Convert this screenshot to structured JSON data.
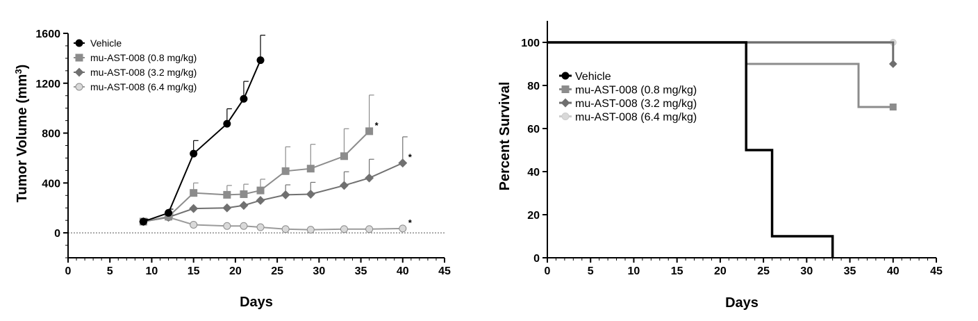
{
  "chart_data": [
    {
      "type": "line",
      "title": "",
      "xlabel": "Days",
      "ylabel": "Tumor Volume (mm",
      "ylabel_sup": "3",
      "ylabel_close": ")",
      "xlim": [
        0,
        45
      ],
      "ylim": [
        -200,
        1600
      ],
      "xticks": [
        0,
        5,
        10,
        15,
        20,
        25,
        30,
        35,
        40,
        45
      ],
      "yticks": [
        0,
        400,
        800,
        1200,
        1600
      ],
      "reference_line": 0,
      "legend_position": "top-left",
      "series": [
        {
          "name": "Vehicle",
          "marker": "circle",
          "color": "#000000",
          "fill": "#000000",
          "x": [
            9,
            12,
            15,
            19,
            21,
            23
          ],
          "y": [
            90,
            160,
            635,
            875,
            1075,
            1385
          ],
          "err": [
            20,
            30,
            105,
            120,
            140,
            200
          ]
        },
        {
          "name": "mu-AST-008 (0.8 mg/kg)",
          "marker": "square",
          "color": "#8c8c8c",
          "fill": "#8c8c8c",
          "x": [
            9,
            12,
            15,
            19,
            21,
            23,
            26,
            29,
            33,
            36
          ],
          "y": [
            90,
            130,
            320,
            305,
            310,
            340,
            495,
            515,
            615,
            815
          ],
          "err": [
            20,
            25,
            80,
            75,
            80,
            90,
            195,
            195,
            220,
            290
          ],
          "annotation": "*"
        },
        {
          "name": "mu-AST-008 (3.2 mg/kg)",
          "marker": "diamond",
          "color": "#707070",
          "fill": "#707070",
          "x": [
            9,
            12,
            15,
            19,
            21,
            23,
            26,
            29,
            33,
            36,
            40
          ],
          "y": [
            90,
            125,
            195,
            200,
            220,
            260,
            305,
            310,
            380,
            440,
            560
          ],
          "err": [
            20,
            20,
            0,
            0,
            0,
            0,
            80,
            95,
            110,
            150,
            210
          ],
          "annotation": "*"
        },
        {
          "name": "mu-AST-008 (6.4 mg/kg)",
          "marker": "circle",
          "color": "#9b9b9b",
          "fill": "#d9d9d9",
          "x": [
            9,
            12,
            15,
            19,
            21,
            23,
            26,
            29,
            33,
            36,
            40
          ],
          "y": [
            90,
            125,
            65,
            55,
            55,
            45,
            30,
            25,
            30,
            30,
            35
          ],
          "err": [
            0,
            0,
            0,
            0,
            0,
            0,
            0,
            0,
            0,
            0,
            0
          ],
          "annotation": "*"
        }
      ]
    },
    {
      "type": "line",
      "subtype": "step",
      "title": "",
      "xlabel": "Days",
      "ylabel": "Percent Survival",
      "xlim": [
        0,
        45
      ],
      "ylim": [
        0,
        110
      ],
      "xticks": [
        0,
        5,
        10,
        15,
        20,
        25,
        30,
        35,
        40,
        45
      ],
      "yticks": [
        0,
        20,
        40,
        60,
        80,
        100
      ],
      "legend_position": "middle-left",
      "series": [
        {
          "name": "Vehicle",
          "marker": "circle",
          "color": "#000000",
          "fill": "#000000",
          "x": [
            0,
            23,
            26,
            33
          ],
          "y": [
            100,
            50,
            10,
            0
          ],
          "end_marker": false
        },
        {
          "name": "mu-AST-008 (0.8 mg/kg)",
          "marker": "square",
          "color": "#8c8c8c",
          "fill": "#8c8c8c",
          "x": [
            0,
            23,
            36,
            40
          ],
          "y": [
            100,
            90,
            70,
            70
          ],
          "end_marker": true
        },
        {
          "name": "mu-AST-008 (3.2 mg/kg)",
          "marker": "diamond",
          "color": "#6e6e6e",
          "fill": "#6e6e6e",
          "x": [
            0,
            40,
            40
          ],
          "y": [
            100,
            100,
            90
          ],
          "end_marker": true
        },
        {
          "name": "mu-AST-008 (6.4  mg/kg)",
          "marker": "circle",
          "color": "#cccccc",
          "fill": "#d9d9d9",
          "x": [
            0,
            40
          ],
          "y": [
            100,
            100
          ],
          "end_marker": true
        }
      ]
    }
  ]
}
